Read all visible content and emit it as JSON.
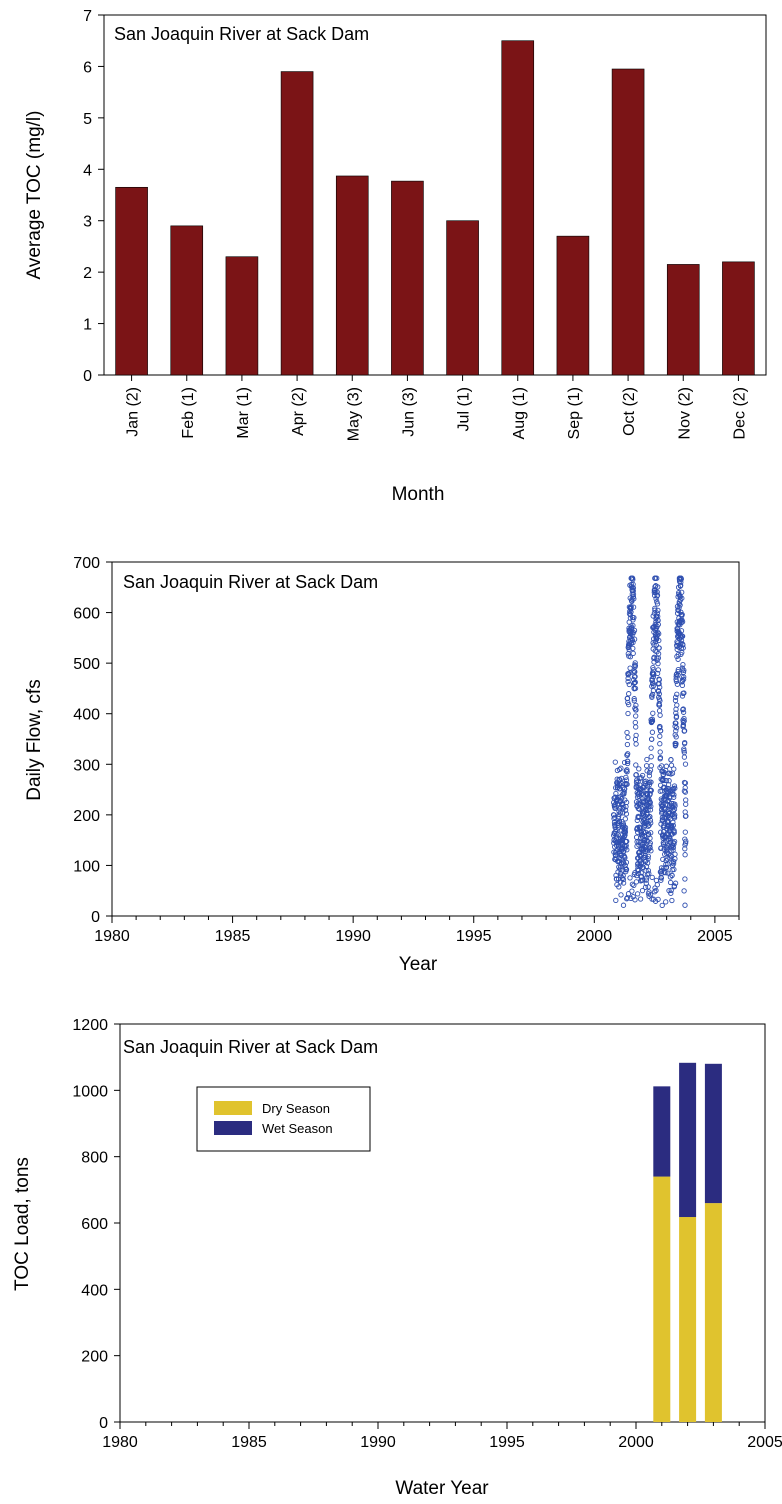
{
  "colors": {
    "bar": "#7b1416",
    "point": "#2f4fb0",
    "dry": "#e0c32e",
    "wet": "#2b2c80"
  },
  "chart_data": [
    {
      "type": "bar",
      "title": "San Joaquin River at Sack Dam",
      "xlabel": "Month",
      "ylabel": "Average TOC (mg/l)",
      "ylim": [
        0,
        7
      ],
      "yticks": [
        0,
        1,
        2,
        3,
        4,
        5,
        6,
        7
      ],
      "categories": [
        "Jan (2)",
        "Feb (1)",
        "Mar (1)",
        "Apr (2)",
        "May (3)",
        "Jun (3)",
        "Jul (1)",
        "Aug (1)",
        "Sep (1)",
        "Oct (2)",
        "Nov (2)",
        "Dec (2)"
      ],
      "values": [
        3.65,
        2.9,
        2.3,
        5.9,
        3.87,
        3.77,
        3.0,
        6.5,
        2.7,
        5.95,
        2.15,
        2.2
      ],
      "grid": false
    },
    {
      "type": "scatter",
      "title": "San Joaquin River at Sack Dam",
      "xlabel": "Year",
      "ylabel": "Daily Flow, cfs",
      "xlim": [
        1980,
        2006
      ],
      "ylim": [
        0,
        700
      ],
      "xticks": [
        1980,
        1985,
        1990,
        1995,
        2000,
        2005
      ],
      "yticks": [
        0,
        100,
        200,
        300,
        400,
        500,
        600,
        700
      ],
      "date_range": [
        2000.8,
        2003.8
      ],
      "value_range": [
        15,
        668
      ],
      "grid": false
    },
    {
      "type": "bar",
      "stacked": true,
      "title": "San Joaquin River at Sack Dam",
      "xlabel": "Water Year",
      "ylabel": "TOC Load, tons",
      "xlim": [
        1980,
        2005
      ],
      "ylim": [
        0,
        1200
      ],
      "xticks": [
        1980,
        1985,
        1990,
        1995,
        2000,
        2005
      ],
      "yticks": [
        0,
        200,
        400,
        600,
        800,
        1000,
        1200
      ],
      "x": [
        2001,
        2002,
        2003
      ],
      "series": [
        {
          "name": "Dry Season",
          "values": [
            740,
            618,
            660
          ]
        },
        {
          "name": "Wet Season",
          "values": [
            272,
            465,
            420
          ]
        }
      ],
      "legend": "upper-left",
      "grid": false
    }
  ]
}
